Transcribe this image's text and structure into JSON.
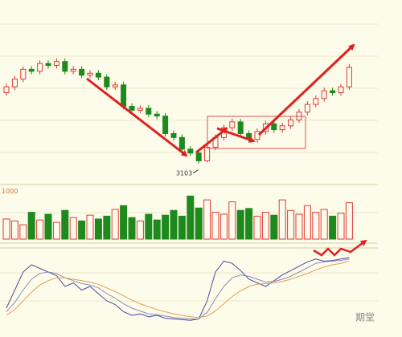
{
  "chart_data": [
    {
      "type": "candlestick",
      "annotation": "3103",
      "annotation_index": 23,
      "open": [
        3285,
        3300,
        3320,
        3345,
        3340,
        3360,
        3355,
        3365,
        3340,
        3345,
        3330,
        3335,
        3325,
        3300,
        3305,
        3250,
        3240,
        3245,
        3230,
        3225,
        3180,
        3170,
        3140,
        3130,
        3110,
        3145,
        3170,
        3195,
        3210,
        3180,
        3165,
        3185,
        3205,
        3190,
        3200,
        3215,
        3235,
        3255,
        3270,
        3290,
        3285,
        3300
      ],
      "high": [
        3308,
        3328,
        3353,
        3353,
        3368,
        3368,
        3373,
        3373,
        3353,
        3353,
        3343,
        3343,
        3333,
        3313,
        3313,
        3258,
        3253,
        3253,
        3238,
        3233,
        3188,
        3178,
        3148,
        3138,
        3153,
        3178,
        3203,
        3218,
        3218,
        3188,
        3193,
        3213,
        3213,
        3208,
        3223,
        3243,
        3263,
        3278,
        3298,
        3298,
        3308,
        3358
      ],
      "low": [
        3277,
        3292,
        3312,
        3332,
        3332,
        3347,
        3347,
        3332,
        3332,
        3322,
        3322,
        3317,
        3292,
        3292,
        3242,
        3232,
        3232,
        3222,
        3217,
        3172,
        3162,
        3132,
        3122,
        3103,
        3106,
        3137,
        3162,
        3187,
        3172,
        3157,
        3157,
        3177,
        3182,
        3182,
        3192,
        3207,
        3227,
        3247,
        3262,
        3277,
        3277,
        3292
      ],
      "close": [
        3300,
        3320,
        3345,
        3340,
        3360,
        3355,
        3365,
        3340,
        3345,
        3330,
        3335,
        3325,
        3300,
        3305,
        3250,
        3240,
        3245,
        3230,
        3225,
        3180,
        3170,
        3140,
        3130,
        3110,
        3145,
        3170,
        3195,
        3210,
        3180,
        3165,
        3185,
        3205,
        3190,
        3200,
        3215,
        3235,
        3255,
        3270,
        3290,
        3285,
        3300,
        3350
      ],
      "up_color": "#e03a3a",
      "down_color": "#1e8a1e",
      "ylim": [
        3080,
        3420
      ]
    },
    {
      "type": "bar",
      "values": [
        420,
        380,
        300,
        560,
        400,
        520,
        350,
        600,
        450,
        380,
        500,
        420,
        480,
        620,
        700,
        450,
        380,
        520,
        400,
        500,
        600,
        480,
        900,
        650,
        820,
        560,
        520,
        780,
        600,
        640,
        480,
        560,
        500,
        820,
        600,
        520,
        700,
        560,
        620,
        480,
        540,
        760
      ],
      "ylim": [
        0,
        1040
      ],
      "yticks": [
        1000
      ]
    },
    {
      "type": "line",
      "ylim": [
        0,
        100
      ],
      "series": [
        {
          "color": "#4b4b9e",
          "values": [
            20,
            45,
            70,
            80,
            75,
            70,
            65,
            50,
            55,
            45,
            50,
            40,
            30,
            25,
            15,
            10,
            12,
            8,
            10,
            6,
            5,
            4,
            3,
            5,
            30,
            70,
            85,
            82,
            72,
            60,
            55,
            50,
            58,
            66,
            72,
            78,
            84,
            88,
            85,
            86,
            88,
            90
          ]
        },
        {
          "color": "#8b8bb8",
          "values": [
            15,
            28,
            45,
            60,
            68,
            70,
            68,
            62,
            58,
            54,
            52,
            48,
            40,
            34,
            26,
            20,
            16,
            12,
            11,
            9,
            7,
            6,
            5,
            5,
            14,
            33,
            50,
            62,
            66,
            64,
            60,
            56,
            57,
            60,
            64,
            70,
            76,
            82,
            84,
            85,
            86,
            88
          ]
        },
        {
          "color": "#e0a050",
          "values": [
            10,
            18,
            30,
            42,
            52,
            58,
            62,
            62,
            60,
            58,
            56,
            53,
            48,
            43,
            37,
            31,
            26,
            22,
            18,
            15,
            12,
            10,
            8,
            7,
            9,
            16,
            26,
            36,
            44,
            50,
            53,
            54,
            55,
            57,
            60,
            64,
            68,
            73,
            77,
            80,
            82,
            85
          ]
        }
      ]
    }
  ],
  "watermark": "期堂"
}
